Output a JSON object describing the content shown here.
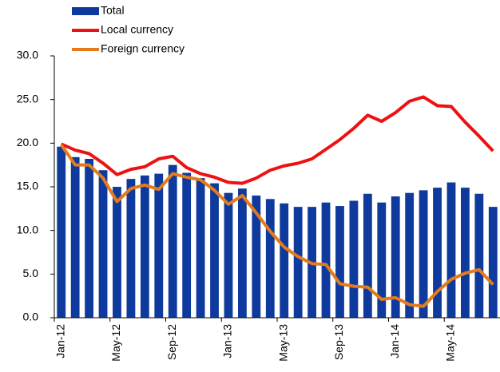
{
  "chart_data": {
    "type": "bar",
    "categories": [
      "Jan-12",
      null,
      null,
      null,
      "May-12",
      null,
      null,
      null,
      "Sep-12",
      null,
      null,
      null,
      "Jan-13",
      null,
      null,
      null,
      "May-13",
      null,
      null,
      null,
      "Sep-13",
      null,
      null,
      null,
      "Jan-14",
      null,
      null,
      null,
      "May-14",
      null,
      null,
      null
    ],
    "series": [
      {
        "name": "Total",
        "type": "bar",
        "color": "#0d3a9c",
        "values": [
          19.6,
          18.4,
          18.2,
          16.9,
          15.0,
          15.9,
          16.3,
          16.5,
          17.5,
          16.6,
          16.0,
          15.4,
          14.3,
          14.8,
          14.0,
          13.6,
          13.1,
          12.7,
          12.7,
          13.2,
          12.8,
          13.4,
          14.2,
          13.2,
          13.9,
          14.3,
          14.6,
          14.9,
          15.5,
          14.9,
          14.2,
          12.7
        ]
      },
      {
        "name": "Local currency",
        "type": "line",
        "color": "#ee1111",
        "values": [
          19.9,
          19.2,
          18.8,
          17.7,
          16.4,
          17.0,
          17.3,
          18.2,
          18.5,
          17.2,
          16.5,
          16.1,
          15.5,
          15.4,
          16.0,
          16.9,
          17.4,
          17.7,
          18.2,
          19.3,
          20.4,
          21.7,
          23.2,
          22.5,
          23.5,
          24.8,
          25.3,
          24.3,
          24.2,
          22.4,
          20.8,
          19.1
        ]
      },
      {
        "name": "Foreign currency",
        "type": "line",
        "color": "#e57a1c",
        "values": [
          19.8,
          17.5,
          17.5,
          16.0,
          13.3,
          14.8,
          15.2,
          14.7,
          16.5,
          16.1,
          15.8,
          14.6,
          13.0,
          14.0,
          12.0,
          9.9,
          8.1,
          7.0,
          6.2,
          6.1,
          3.9,
          3.6,
          3.5,
          2.1,
          2.3,
          1.5,
          1.3,
          3.0,
          4.4,
          5.1,
          5.5,
          3.8
        ]
      }
    ],
    "ylim": [
      0,
      30
    ],
    "yticks": [
      {
        "value": 0,
        "label": "0.0"
      },
      {
        "value": 5,
        "label": "5.0"
      },
      {
        "value": 10,
        "label": "10.0"
      },
      {
        "value": 15,
        "label": "15.0"
      },
      {
        "value": 20,
        "label": "20.0"
      },
      {
        "value": 25,
        "label": "25.0"
      },
      {
        "value": 30,
        "label": "30.0"
      }
    ],
    "grid": false,
    "legend": "top-left"
  }
}
